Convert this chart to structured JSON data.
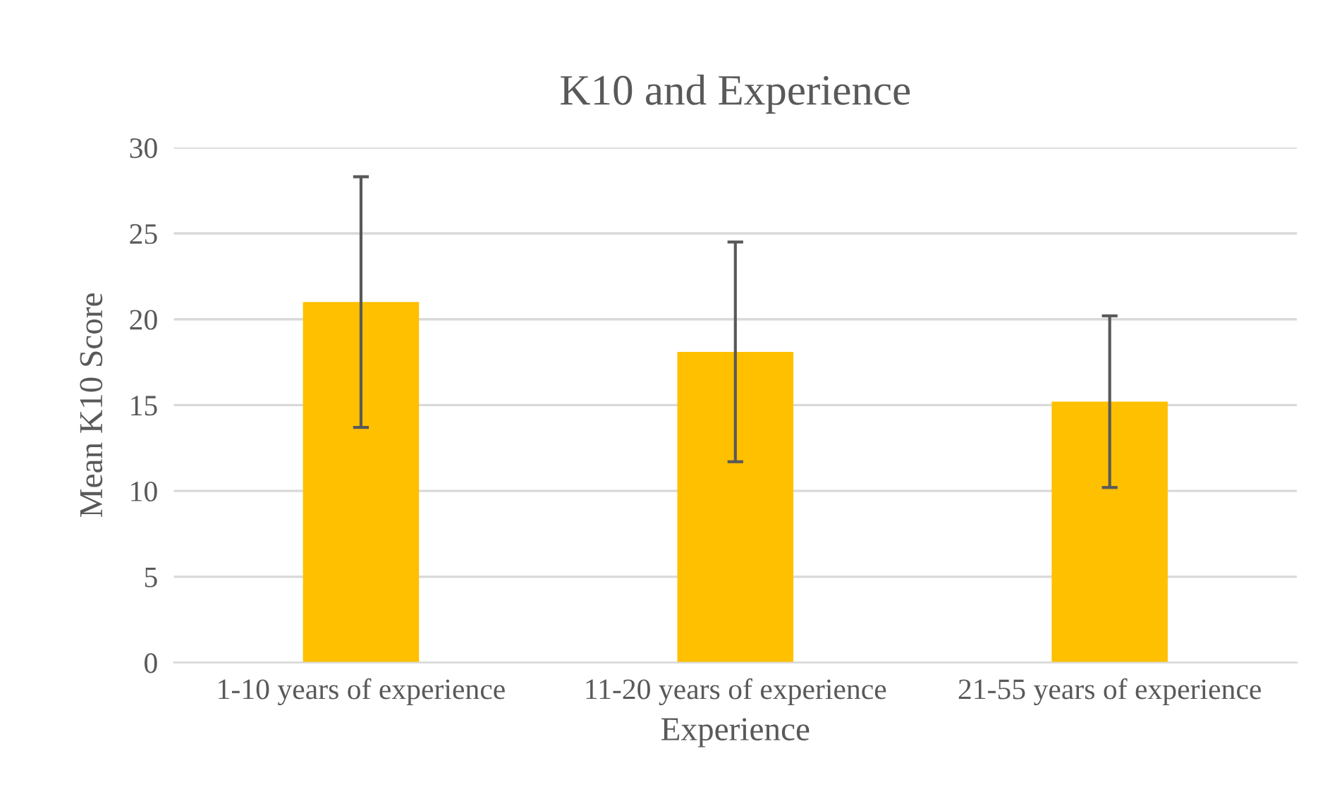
{
  "chart_data": {
    "type": "bar",
    "title": "K10 and Experience",
    "xlabel": "Experience",
    "ylabel": "Mean K10 Score",
    "categories": [
      "1-10 years of experience",
      "11-20 years of experience",
      "21-55 years of experience"
    ],
    "values": [
      21.0,
      18.1,
      15.2
    ],
    "errors": [
      7.3,
      6.4,
      5.0
    ],
    "color": "#ffc000",
    "ylim": [
      0,
      30
    ],
    "yticks": [
      0,
      5,
      10,
      15,
      20,
      25,
      30
    ],
    "grid": "y",
    "legend": false
  }
}
